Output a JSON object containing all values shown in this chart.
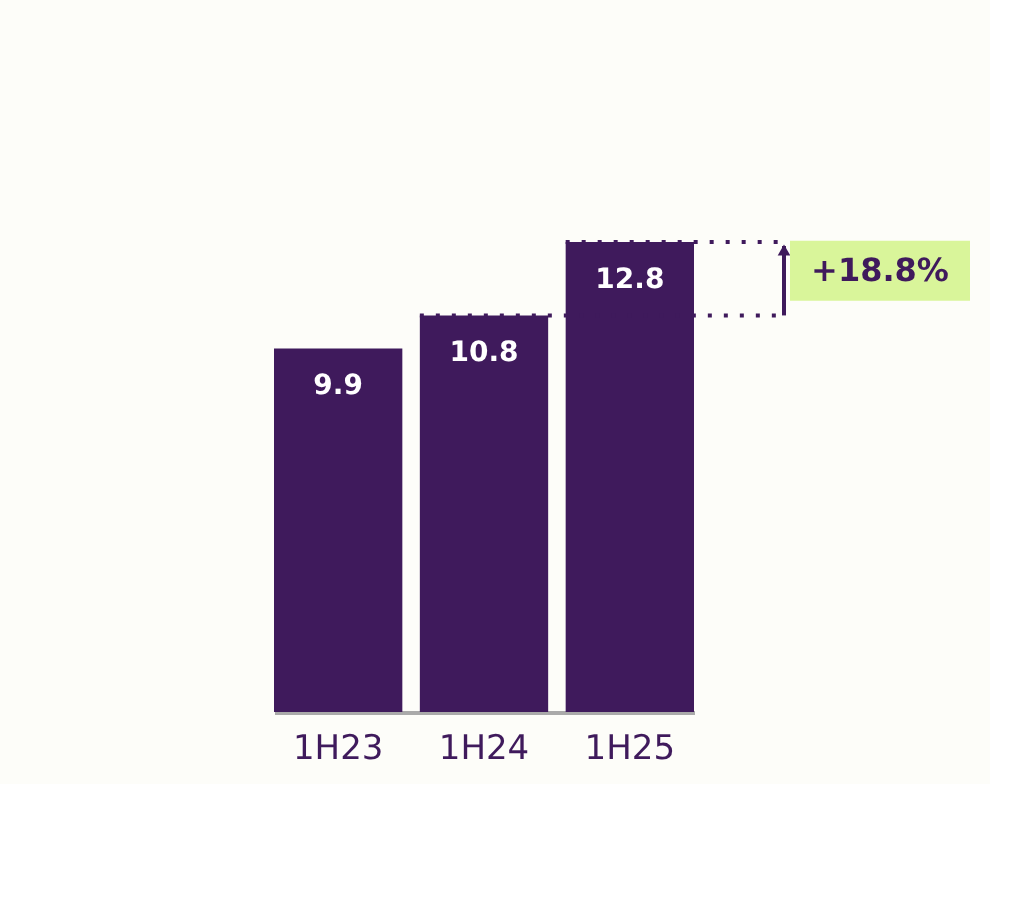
{
  "chart_data": {
    "type": "bar",
    "categories": [
      "1H23",
      "1H24",
      "1H25"
    ],
    "values": [
      9.9,
      10.8,
      12.8
    ],
    "color": "#3f1a5c",
    "data_labels": true,
    "ref_lines": [
      {
        "axis": "y",
        "value": 10.8,
        "line_style": "dotted",
        "color": "#3f1a5c"
      },
      {
        "axis": "y",
        "value": 12.8,
        "line_style": "dotted",
        "color": "#3f1a5c"
      }
    ],
    "annotations": [
      "+18.8%"
    ]
  }
}
